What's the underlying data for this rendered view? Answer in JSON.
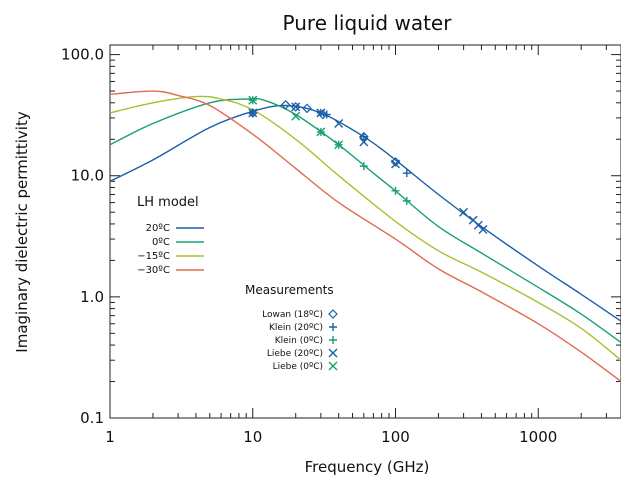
{
  "chart_data": {
    "type": "line",
    "title": "Pure liquid water",
    "xlabel": "Frequency (GHz)",
    "ylabel": "Imaginary dielectric permittivity",
    "x_scale": "log",
    "y_scale": "log",
    "xlim": [
      1,
      3800
    ],
    "ylim": [
      0.1,
      120
    ],
    "x_ticks": [
      {
        "value": 1,
        "label": "1"
      },
      {
        "value": 10,
        "label": "10"
      },
      {
        "value": 100,
        "label": "100"
      },
      {
        "value": 1000,
        "label": "1000"
      }
    ],
    "y_ticks": [
      {
        "value": 0.1,
        "label": "0.1"
      },
      {
        "value": 1,
        "label": "1.0"
      },
      {
        "value": 10,
        "label": "10.0"
      },
      {
        "value": 100,
        "label": "100.0"
      }
    ],
    "grid": false,
    "legend_title": "LH model",
    "legend_placement": "center-left",
    "series": [
      {
        "name": "20ºC",
        "color": "#1a5fa8",
        "x": [
          1,
          2,
          5,
          10,
          17,
          30,
          60,
          100,
          200,
          400,
          1000,
          2000,
          3800
        ],
        "y": [
          9.0,
          13.5,
          25,
          34,
          38,
          33,
          21,
          13.5,
          7.0,
          3.8,
          1.8,
          1.05,
          0.63
        ]
      },
      {
        "name": "0ºC",
        "color": "#1aa070",
        "x": [
          1,
          2,
          5,
          9,
          12,
          20,
          40,
          70,
          100,
          200,
          400,
          1000,
          2000,
          3800
        ],
        "y": [
          18,
          27,
          40,
          43,
          42,
          32,
          18,
          10.5,
          7.5,
          3.8,
          2.3,
          1.2,
          0.72,
          0.42
        ]
      },
      {
        "name": "−15ºC",
        "color": "#a8c030",
        "x": [
          1,
          2,
          4,
          6,
          10,
          20,
          40,
          100,
          200,
          400,
          1000,
          2000,
          3800
        ],
        "y": [
          33,
          40,
          45,
          43,
          35,
          20,
          10,
          4.2,
          2.4,
          1.6,
          0.9,
          0.55,
          0.3
        ]
      },
      {
        "name": "−30ºC",
        "color": "#e06a50",
        "x": [
          1,
          2,
          3,
          5,
          10,
          20,
          40,
          100,
          200,
          400,
          1000,
          2000,
          3800
        ],
        "y": [
          47,
          50,
          46,
          38,
          22,
          11.5,
          6.0,
          3.0,
          1.7,
          1.1,
          0.6,
          0.35,
          0.2
        ]
      }
    ],
    "measurements_title": "Measurements",
    "measurements": [
      {
        "name": "Lowan (18ºC)",
        "marker": "diamond",
        "color": "#1a5fa8",
        "x": [
          10,
          17,
          20,
          24,
          31,
          60,
          100
        ],
        "y": [
          33,
          38.5,
          37,
          36,
          32,
          21,
          13
        ]
      },
      {
        "name": "Klein (20ºC)",
        "marker": "plus",
        "color": "#1a5fa8",
        "x": [
          10,
          30,
          33,
          60,
          120
        ],
        "y": [
          33,
          33,
          32,
          21,
          10.5
        ]
      },
      {
        "name": "Klein (0ºC)",
        "marker": "plus",
        "color": "#1aa070",
        "x": [
          10,
          30,
          40,
          60,
          100,
          120
        ],
        "y": [
          42,
          23,
          18,
          12,
          7.5,
          6.2
        ]
      },
      {
        "name": "Liebe (20ºC)",
        "marker": "x",
        "color": "#1a5fa8",
        "x": [
          10,
          20,
          30,
          40,
          60,
          100,
          300,
          350,
          380,
          410
        ],
        "y": [
          33,
          37,
          33,
          27,
          19,
          12.5,
          5.0,
          4.3,
          3.9,
          3.6
        ]
      },
      {
        "name": "Liebe (0ºC)",
        "marker": "x",
        "color": "#1aa070",
        "x": [
          10,
          20,
          30,
          40
        ],
        "y": [
          42,
          31,
          23,
          18
        ]
      }
    ]
  }
}
